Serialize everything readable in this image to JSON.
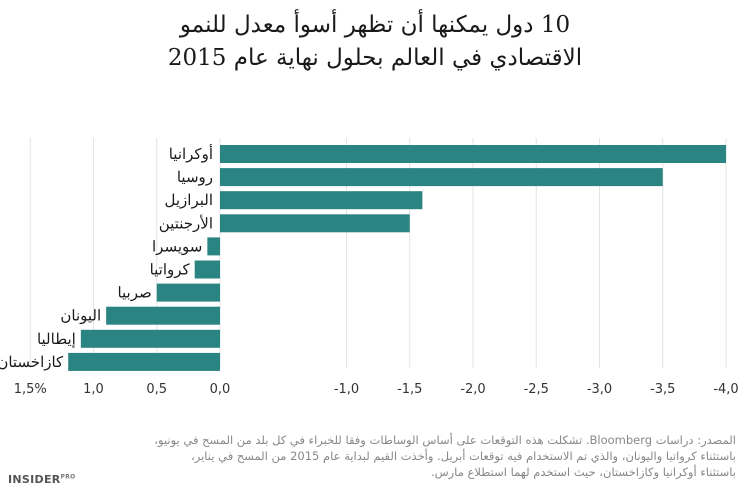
{
  "title_line1": "10 دول يمكنها أن تظهر أسوأ معدل للنمو",
  "title_line2": "الاقتصادي في العالم بحلول نهاية عام 2015",
  "chart_data": {
    "type": "bar",
    "orientation": "horizontal",
    "x_axis_reversed": true,
    "categories": [
      "أوكرانيا",
      "روسيا",
      "البرازيل",
      "الأرجنتين",
      "سويسرا",
      "كرواتيا",
      "صربيا",
      "اليونان",
      "إيطاليا",
      "كازاخستان"
    ],
    "values": [
      -4.0,
      -3.5,
      -1.6,
      -1.5,
      0.1,
      0.2,
      0.5,
      0.9,
      1.1,
      1.2
    ],
    "xlim": [
      1.5,
      -4.0
    ],
    "ticks": [
      1.5,
      1.0,
      0.5,
      0.0,
      -1.0,
      -1.5,
      -2.0,
      -2.5,
      -3.0,
      -3.5,
      -4.0
    ],
    "tick_labels": [
      "1,5%",
      "1,0",
      "0,5",
      "0,0",
      "-1,0",
      "-1,5",
      "-2,0",
      "-2,5",
      "-3,0",
      "-3,5",
      "-4,0"
    ],
    "bar_color": "#2a8482",
    "grid": true
  },
  "notes": {
    "line1": "المصدر: دراسات Bloomberg. تشكلت هذه التوقعات على أساس الوساطات وفقا للخبراء في كل بلد من المسح في يونيو،",
    "line2": "باستثناء كرواتيا واليونان، والذي تم الاستخدام فيه توقعات أبريل. وأخذت القيم لبداية عام 2015 من المسح في يناير،",
    "line3": "باستثناء أوكرانيا وكازاخستان، حيث استخدم لهما استطلاع مارس.",
    "line4": ""
  },
  "logo": {
    "main": "INSIDER",
    "sup": "PRO"
  }
}
